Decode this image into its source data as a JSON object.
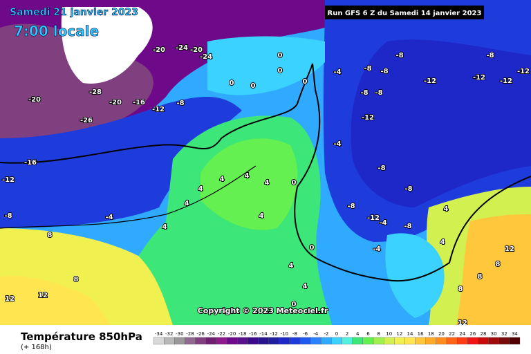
{
  "header": {
    "valid_date": "Samedi 21 janvier 2023",
    "local_time": "7:00 locale",
    "run": "Run GFS 6 Z du Samedi 14 janvier 2023"
  },
  "copyright": "Copyright © 2023 Meteociel.fr",
  "footer": {
    "title": "Température 850hPa",
    "lead": "(+ 168h)"
  },
  "scale": {
    "values": [
      -34,
      -32,
      -30,
      -28,
      -26,
      -24,
      -22,
      -20,
      -18,
      -16,
      -14,
      -12,
      -10,
      -8,
      -6,
      -4,
      -2,
      0,
      2,
      4,
      6,
      8,
      10,
      12,
      14,
      16,
      18,
      20,
      22,
      24,
      26,
      28,
      30,
      32,
      34
    ],
    "colors": [
      "#d8d8d8",
      "#b8b8b8",
      "#989898",
      "#906890",
      "#804080",
      "#702070",
      "#8c1a8c",
      "#6e0a8a",
      "#5a0f8c",
      "#3c0a8c",
      "#28148c",
      "#1e1ea0",
      "#1e28c8",
      "#1e3cdc",
      "#1e5af0",
      "#2a82ff",
      "#30aaff",
      "#3cd2ff",
      "#50f0dc",
      "#3ce678",
      "#64f050",
      "#a0f050",
      "#d2f050",
      "#f0f050",
      "#ffe650",
      "#ffc83c",
      "#ffaa28",
      "#ff8c1e",
      "#ff6414",
      "#ff3c14",
      "#f01414",
      "#c80a0a",
      "#a00a0a",
      "#780a0a",
      "#500000"
    ]
  },
  "map": {
    "contour_labels": [
      "0",
      "0",
      "0",
      "0",
      "0",
      "-4",
      "-8",
      "-8",
      "-8",
      "-12",
      "-12",
      "-12",
      "-12",
      "-8",
      "-8",
      "-8",
      "-12",
      "-4",
      "-8",
      "-8",
      "-8",
      "-12",
      "-8",
      "-4",
      "-4",
      "0",
      "4",
      "4",
      "4",
      "4",
      "4",
      "4",
      "4",
      "-4",
      "-8",
      "-12",
      "-16",
      "-20",
      "-28",
      "-20",
      "-16",
      "-12",
      "-8",
      "-26",
      "-20",
      "-24",
      "-20",
      "-24",
      "8",
      "8",
      "12",
      "12",
      "4",
      "4",
      "0",
      "0",
      "12",
      "12",
      "8",
      "8",
      "4",
      "4",
      "8"
    ]
  }
}
